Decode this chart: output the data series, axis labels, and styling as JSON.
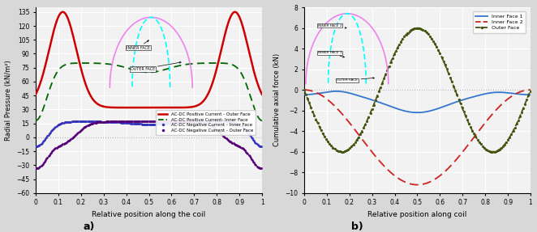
{
  "left_ylabel": "Radial Pressure (kN/m²)",
  "left_xlabel": "Relative position along the coil",
  "right_ylabel": "Cumulative axial force (kN)",
  "right_xlabel": "Relative position along coil",
  "left_ylim": [
    -60,
    140
  ],
  "left_yticks": [
    -60,
    -45,
    -30,
    -15,
    0,
    15,
    30,
    45,
    60,
    75,
    90,
    105,
    120,
    135
  ],
  "right_ylim": [
    -10,
    8
  ],
  "right_yticks": [
    -10,
    -8,
    -6,
    -4,
    -2,
    0,
    2,
    4,
    6,
    8
  ],
  "xlim": [
    0,
    1
  ],
  "xticks": [
    0,
    0.1,
    0.2,
    0.3,
    0.4,
    0.5,
    0.6,
    0.7,
    0.8,
    0.9,
    1.0
  ],
  "xtick_labels": [
    "0",
    "0.1",
    "0.2",
    "0.3",
    "0.4",
    "0.5",
    "0.6",
    "0.7",
    "0.8",
    "0.9",
    "1"
  ],
  "colors": {
    "outer_face_pos": "#cc0000",
    "inner_face_pos": "#006600",
    "inner_face_neg": "#3333bb",
    "outer_face_neg": "#550077",
    "right_inner1": "#3377cc",
    "right_inner2": "#cc2222",
    "right_outer": "#445511"
  },
  "bg_color": "#f2f2f2",
  "fig_bg": "#d8d8d8"
}
